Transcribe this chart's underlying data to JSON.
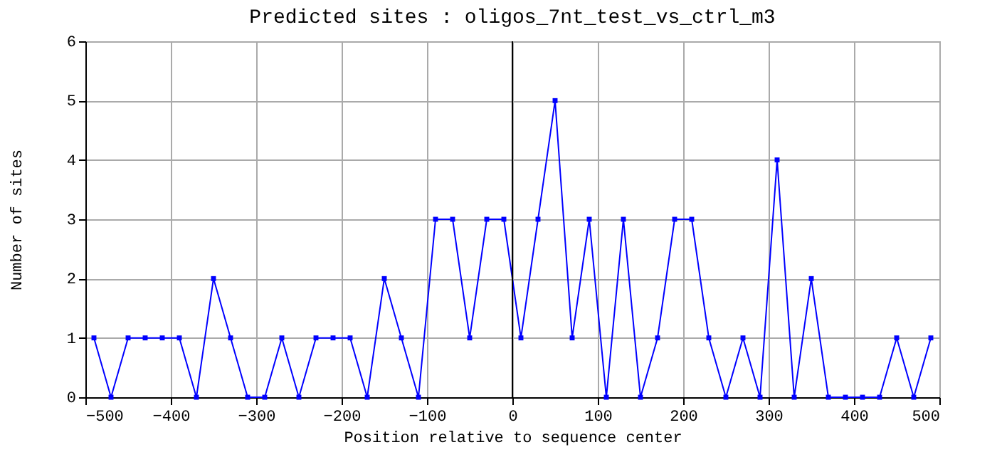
{
  "chart_data": {
    "type": "line",
    "title": "Predicted sites : oligos_7nt_test_vs_ctrl_m3",
    "xlabel": "Position relative to sequence center",
    "ylabel": "Number of sites",
    "x": [
      -490,
      -470,
      -450,
      -430,
      -410,
      -390,
      -370,
      -350,
      -330,
      -310,
      -290,
      -270,
      -250,
      -230,
      -210,
      -190,
      -170,
      -150,
      -130,
      -110,
      -90,
      -70,
      -50,
      -30,
      -10,
      10,
      30,
      50,
      70,
      90,
      110,
      130,
      150,
      170,
      190,
      210,
      230,
      250,
      270,
      290,
      310,
      330,
      350,
      370,
      390,
      410,
      430,
      450,
      470,
      490
    ],
    "series": [
      {
        "color": "#0000ff",
        "values": [
          1,
          0,
          1,
          1,
          1,
          1,
          0,
          2,
          1,
          0,
          0,
          1,
          0,
          1,
          1,
          1,
          0,
          2,
          1,
          0,
          3,
          3,
          1,
          3,
          3,
          1,
          3,
          5,
          1,
          3,
          0,
          3,
          0,
          1,
          3,
          3,
          1,
          0,
          1,
          0,
          4,
          0,
          2,
          0,
          0,
          0,
          0,
          1,
          0,
          1
        ]
      }
    ],
    "xlim": [
      -500,
      500
    ],
    "xticks": [
      -500,
      -400,
      -300,
      -200,
      -100,
      0,
      100,
      200,
      300,
      400,
      500
    ],
    "ylim": [
      0,
      6
    ],
    "yticks": [
      0,
      1,
      2,
      3,
      4,
      5,
      6
    ],
    "ref_lines": [
      {
        "axis": "x",
        "value": 0,
        "color": "#000000"
      }
    ],
    "grid": true,
    "marker": "square",
    "line_style": "solid"
  }
}
